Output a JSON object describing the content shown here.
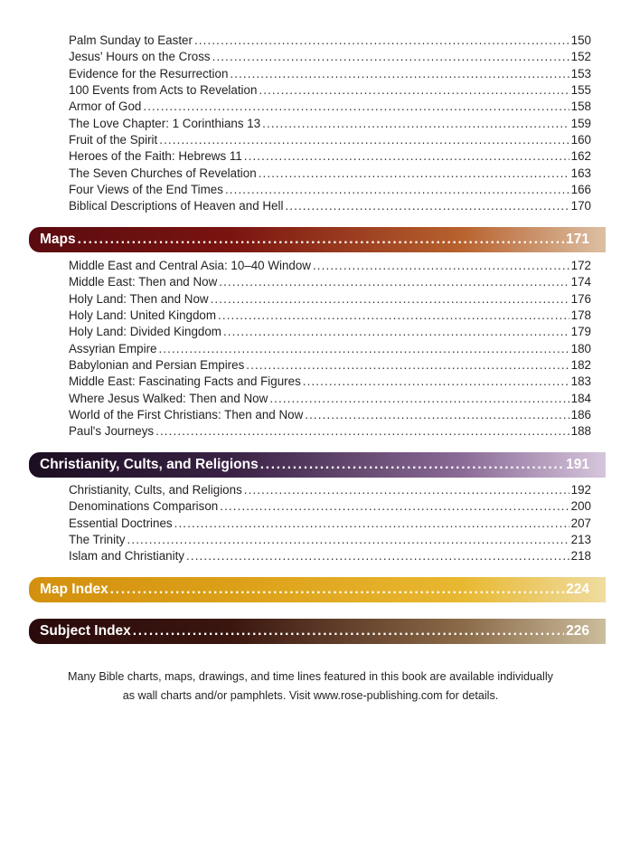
{
  "top_entries": [
    {
      "title": "Palm Sunday to Easter",
      "page": "150"
    },
    {
      "title": "Jesus' Hours on the Cross",
      "page": "152"
    },
    {
      "title": "Evidence for the Resurrection",
      "page": "153"
    },
    {
      "title": "100 Events from Acts to Revelation",
      "page": "155"
    },
    {
      "title": "Armor of God",
      "page": "158"
    },
    {
      "title": "The Love Chapter: 1 Corinthians 13",
      "page": "159"
    },
    {
      "title": "Fruit of the Spirit",
      "page": "160"
    },
    {
      "title": "Heroes of the Faith: Hebrews 11",
      "page": "162"
    },
    {
      "title": "The Seven Churches of Revelation",
      "page": "163"
    },
    {
      "title": "Four Views of the End Times",
      "page": "166"
    },
    {
      "title": "Biblical Descriptions of Heaven and Hell",
      "page": "170"
    }
  ],
  "sections": [
    {
      "title": "Maps",
      "page": "171",
      "colors": [
        "#5a0b10",
        "#7a1410",
        "#b8622e",
        "#dcc0a4"
      ],
      "entries": [
        {
          "title": "Middle East and Central Asia: 10–40 Window",
          "page": "172"
        },
        {
          "title": "Middle East: Then and Now",
          "page": "174"
        },
        {
          "title": "Holy Land: Then and Now",
          "page": "176"
        },
        {
          "title": "Holy Land: United Kingdom",
          "page": "178"
        },
        {
          "title": "Holy Land: Divided Kingdom",
          "page": "179"
        },
        {
          "title": "Assyrian Empire",
          "page": "180"
        },
        {
          "title": "Babylonian and Persian Empires",
          "page": "182"
        },
        {
          "title": "Middle East: Fascinating Facts and Figures",
          "page": "183"
        },
        {
          "title": "Where Jesus Walked: Then and Now",
          "page": "184"
        },
        {
          "title": "World of the First Christians: Then and Now",
          "page": "186"
        },
        {
          "title": "Paul's Journeys",
          "page": "188"
        }
      ]
    },
    {
      "title": "Christianity, Cults, and Religions",
      "page": "191",
      "colors": [
        "#1c0e22",
        "#3a2244",
        "#8a6a96",
        "#d6c6dc"
      ],
      "entries": [
        {
          "title": "Christianity, Cults, and Religions",
          "page": "192"
        },
        {
          "title": "Denominations Comparison",
          "page": "200"
        },
        {
          "title": "Essential Doctrines",
          "page": "207"
        },
        {
          "title": "The Trinity",
          "page": "213"
        },
        {
          "title": "Islam and Christianity",
          "page": "218"
        }
      ]
    },
    {
      "title": "Map Index",
      "page": "224",
      "colors": [
        "#d3900e",
        "#dca018",
        "#e8b830",
        "#efdca0"
      ],
      "entries": []
    },
    {
      "title": "Subject Index",
      "page": "226",
      "colors": [
        "#2a0a0c",
        "#3a160f",
        "#8a6a48",
        "#cbbd9d"
      ],
      "entries": []
    }
  ],
  "footer": {
    "line1": "Many Bible charts, maps, drawings, and time lines featured in this book are available individually",
    "line2": "as wall charts and/or pamphlets. Visit www.rose-publishing.com for details."
  }
}
